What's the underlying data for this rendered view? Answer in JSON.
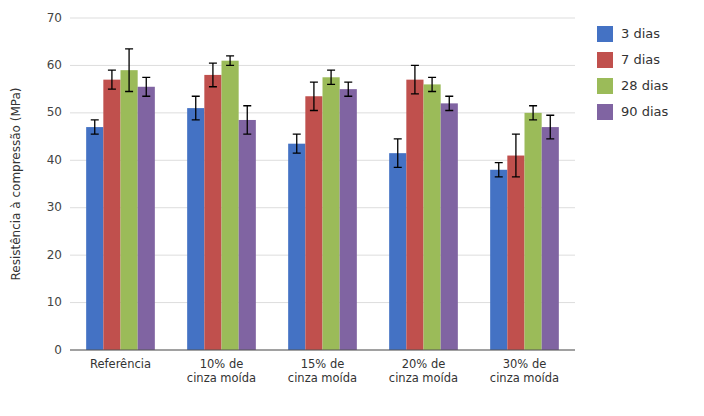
{
  "chart_data": {
    "type": "bar",
    "categories": [
      "Referência",
      "10% de\ncinza moída",
      "15% de\ncinza moída",
      "20% de\ncinza moída",
      "30% de\ncinza moída"
    ],
    "series": [
      {
        "name": "3 dias",
        "color": "#4472C4",
        "values": [
          47.0,
          51.0,
          43.5,
          41.5,
          38.0
        ],
        "errors": [
          1.5,
          2.5,
          2.0,
          3.0,
          1.5
        ]
      },
      {
        "name": "7 dias",
        "color": "#C0504D",
        "values": [
          57.0,
          58.0,
          53.5,
          57.0,
          41.0
        ],
        "errors": [
          2.0,
          2.5,
          3.0,
          3.0,
          4.5
        ]
      },
      {
        "name": "28 dias",
        "color": "#9BBB59",
        "values": [
          59.0,
          61.0,
          57.5,
          56.0,
          50.0
        ],
        "errors": [
          4.5,
          1.0,
          1.5,
          1.5,
          1.5
        ]
      },
      {
        "name": "90 dias",
        "color": "#8064A2",
        "values": [
          55.5,
          48.5,
          55.0,
          52.0,
          47.0
        ],
        "errors": [
          2.0,
          3.0,
          1.5,
          1.5,
          2.5
        ]
      }
    ],
    "y_label": "Resistência à compressão (MPa)",
    "ylim": [
      0,
      70
    ],
    "yticks": [
      0,
      10,
      20,
      30,
      40,
      50,
      60,
      70
    ],
    "grid": true,
    "legend": "right"
  }
}
